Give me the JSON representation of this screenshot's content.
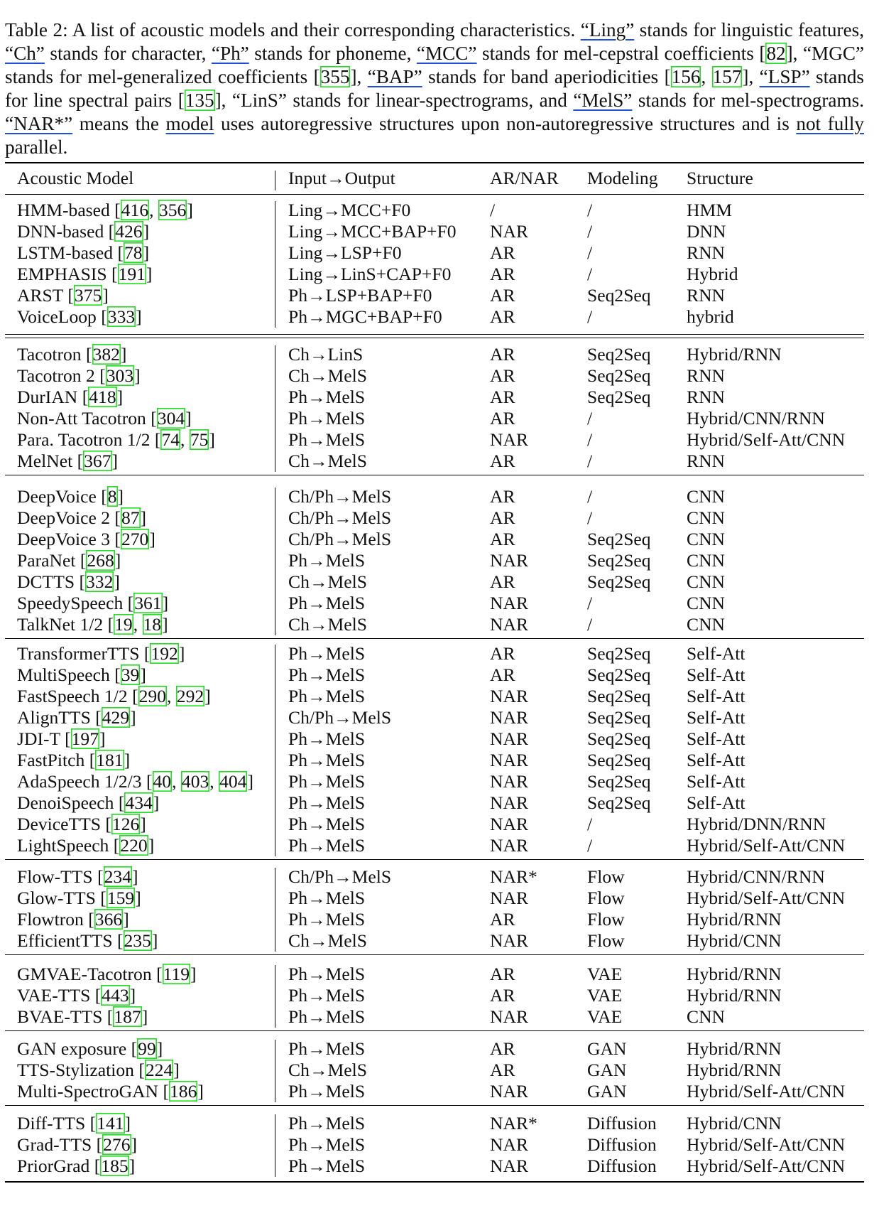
{
  "caption": {
    "label": "Table 2:",
    "text_1": "A list of acoustic models and their corresponding characteristics.",
    "q_ling": "“Ling”",
    "text_2": "stands for linguistic features,",
    "q_ch": "“Ch”",
    "text_3": "stands for character,",
    "q_ph": "“Ph”",
    "text_4": "stands for phoneme,",
    "q_mcc": "“MCC”",
    "text_5": "stands for mel-cepstral coefficients",
    "cite_mcc": "82",
    "q_mgc": "“MGC”",
    "text_6": "stands for mel-generalized coefficients",
    "cite_mgc": "355",
    "q_bap": "“BAP”",
    "text_7": "stands for band aperiodicities",
    "cite_bap_1": "156",
    "cite_bap_2": "157",
    "q_lsp": "“LSP”",
    "text_8": "stands for line spectral pairs",
    "cite_lsp": "135",
    "q_lins": "“LinS”",
    "text_9": "stands for linear-spectrograms,",
    "text_and": "and",
    "q_mels": "“MelS”",
    "text_10": "stands for mel-spectrograms.",
    "q_nar": "“NAR*”",
    "text_11a": "means the",
    "text_model": "model",
    "text_11b": "uses autoregressive structures upon non-autoregressive structures and is",
    "text_notfully": "not fully",
    "text_12": "parallel."
  },
  "table": {
    "headers": [
      "Acoustic Model",
      "Input→Output",
      "AR/NAR",
      "Modeling",
      "Structure"
    ],
    "groups": [
      [
        {
          "name": "HMM-based",
          "cites": [
            "416",
            "356"
          ],
          "io": "Ling→MCC+F0",
          "arnar": "/",
          "modeling": "/",
          "structure": "HMM"
        },
        {
          "name": "DNN-based",
          "cites": [
            "426"
          ],
          "io": "Ling→MCC+BAP+F0",
          "arnar": "NAR",
          "modeling": "/",
          "structure": "DNN"
        },
        {
          "name": "LSTM-based",
          "cites": [
            "78"
          ],
          "io": "Ling→LSP+F0",
          "arnar": "AR",
          "modeling": "/",
          "structure": "RNN"
        },
        {
          "name": "EMPHASIS",
          "cites": [
            "191"
          ],
          "io": "Ling→LinS+CAP+F0",
          "arnar": "AR",
          "modeling": "/",
          "structure": "Hybrid"
        },
        {
          "name": "ARST",
          "cites": [
            "375"
          ],
          "io": "Ph→LSP+BAP+F0",
          "arnar": "AR",
          "modeling": "Seq2Seq",
          "structure": "RNN"
        },
        {
          "name": "VoiceLoop",
          "cites": [
            "333"
          ],
          "io": "Ph→MGC+BAP+F0",
          "arnar": "AR",
          "modeling": "/",
          "structure": "hybrid"
        }
      ],
      [
        {
          "name": "Tacotron",
          "cites": [
            "382"
          ],
          "io": "Ch→LinS",
          "arnar": "AR",
          "modeling": "Seq2Seq",
          "structure": "Hybrid/RNN"
        },
        {
          "name": "Tacotron 2",
          "cites": [
            "303"
          ],
          "io": "Ch→MelS",
          "arnar": "AR",
          "modeling": "Seq2Seq",
          "structure": "RNN"
        },
        {
          "name": "DurIAN",
          "cites": [
            "418"
          ],
          "io": "Ph→MelS",
          "arnar": "AR",
          "modeling": "Seq2Seq",
          "structure": "RNN"
        },
        {
          "name": "Non-Att Tacotron",
          "cites": [
            "304"
          ],
          "io": "Ph→MelS",
          "arnar": "AR",
          "modeling": "/",
          "structure": "Hybrid/CNN/RNN"
        },
        {
          "name": "Para. Tacotron 1/2",
          "cites": [
            "74",
            "75"
          ],
          "io": "Ph→MelS",
          "arnar": "NAR",
          "modeling": "/",
          "structure": "Hybrid/Self-Att/CNN"
        },
        {
          "name": "MelNet",
          "cites": [
            "367"
          ],
          "io": "Ch→MelS",
          "arnar": "AR",
          "modeling": "/",
          "structure": "RNN"
        }
      ],
      [
        {
          "name": "DeepVoice",
          "cites": [
            "8"
          ],
          "io": "Ch/Ph→MelS",
          "arnar": "AR",
          "modeling": "/",
          "structure": "CNN"
        },
        {
          "name": "DeepVoice 2",
          "cites": [
            "87"
          ],
          "io": "Ch/Ph→MelS",
          "arnar": "AR",
          "modeling": "/",
          "structure": "CNN"
        },
        {
          "name": "DeepVoice 3",
          "cites": [
            "270"
          ],
          "io": "Ch/Ph→MelS",
          "arnar": "AR",
          "modeling": "Seq2Seq",
          "structure": "CNN"
        },
        {
          "name": "ParaNet",
          "cites": [
            "268"
          ],
          "io": "Ph→MelS",
          "arnar": "NAR",
          "modeling": "Seq2Seq",
          "structure": "CNN"
        },
        {
          "name": "DCTTS",
          "cites": [
            "332"
          ],
          "io": "Ch→MelS",
          "arnar": "AR",
          "modeling": "Seq2Seq",
          "structure": "CNN"
        },
        {
          "name": "SpeedySpeech",
          "cites": [
            "361"
          ],
          "io": "Ph→MelS",
          "arnar": "NAR",
          "modeling": "/",
          "structure": "CNN"
        },
        {
          "name": "TalkNet 1/2",
          "cites": [
            "19",
            "18"
          ],
          "io": "Ch→MelS",
          "arnar": "NAR",
          "modeling": "/",
          "structure": "CNN"
        }
      ],
      [
        {
          "name": "TransformerTTS",
          "cites": [
            "192"
          ],
          "io": "Ph→MelS",
          "arnar": "AR",
          "modeling": "Seq2Seq",
          "structure": "Self-Att"
        },
        {
          "name": "MultiSpeech",
          "cites": [
            "39"
          ],
          "io": "Ph→MelS",
          "arnar": "AR",
          "modeling": "Seq2Seq",
          "structure": "Self-Att"
        },
        {
          "name": "FastSpeech 1/2",
          "cites": [
            "290",
            "292"
          ],
          "io": "Ph→MelS",
          "arnar": "NAR",
          "modeling": "Seq2Seq",
          "structure": "Self-Att"
        },
        {
          "name": "AlignTTS",
          "cites": [
            "429"
          ],
          "io": "Ch/Ph→MelS",
          "arnar": "NAR",
          "modeling": "Seq2Seq",
          "structure": "Self-Att"
        },
        {
          "name": "JDI-T",
          "cites": [
            "197"
          ],
          "io": "Ph→MelS",
          "arnar": "NAR",
          "modeling": "Seq2Seq",
          "structure": "Self-Att"
        },
        {
          "name": "FastPitch",
          "cites": [
            "181"
          ],
          "io": "Ph→MelS",
          "arnar": "NAR",
          "modeling": "Seq2Seq",
          "structure": "Self-Att"
        },
        {
          "name": "AdaSpeech 1/2/3",
          "cites": [
            "40",
            "403",
            "404"
          ],
          "io": "Ph→MelS",
          "arnar": "NAR",
          "modeling": "Seq2Seq",
          "structure": "Self-Att"
        },
        {
          "name": "DenoiSpeech",
          "cites": [
            "434"
          ],
          "io": "Ph→MelS",
          "arnar": "NAR",
          "modeling": "Seq2Seq",
          "structure": "Self-Att"
        },
        {
          "name": "DeviceTTS",
          "cites": [
            "126"
          ],
          "io": "Ph→MelS",
          "arnar": "NAR",
          "modeling": "/",
          "structure": "Hybrid/DNN/RNN"
        },
        {
          "name": "LightSpeech",
          "cites": [
            "220"
          ],
          "io": "Ph→MelS",
          "arnar": "NAR",
          "modeling": "/",
          "structure": "Hybrid/Self-Att/CNN"
        }
      ],
      [
        {
          "name": "Flow-TTS",
          "cites": [
            "234"
          ],
          "io": "Ch/Ph→MelS",
          "arnar": "NAR*",
          "modeling": "Flow",
          "structure": "Hybrid/CNN/RNN"
        },
        {
          "name": "Glow-TTS",
          "cites": [
            "159"
          ],
          "io": "Ph→MelS",
          "arnar": "NAR",
          "modeling": "Flow",
          "structure": "Hybrid/Self-Att/CNN"
        },
        {
          "name": "Flowtron",
          "cites": [
            "366"
          ],
          "io": "Ph→MelS",
          "arnar": "AR",
          "modeling": "Flow",
          "structure": "Hybrid/RNN"
        },
        {
          "name": "EfficientTTS",
          "cites": [
            "235"
          ],
          "io": "Ch→MelS",
          "arnar": "NAR",
          "modeling": "Flow",
          "structure": "Hybrid/CNN"
        }
      ],
      [
        {
          "name": "GMVAE-Tacotron",
          "cites": [
            "119"
          ],
          "io": "Ph→MelS",
          "arnar": "AR",
          "modeling": "VAE",
          "structure": "Hybrid/RNN"
        },
        {
          "name": "VAE-TTS",
          "cites": [
            "443"
          ],
          "io": "Ph→MelS",
          "arnar": "AR",
          "modeling": "VAE",
          "structure": "Hybrid/RNN"
        },
        {
          "name": "BVAE-TTS",
          "cites": [
            "187"
          ],
          "io": "Ph→MelS",
          "arnar": "NAR",
          "modeling": "VAE",
          "structure": "CNN"
        }
      ],
      [
        {
          "name": "GAN exposure",
          "cites": [
            "99"
          ],
          "io": "Ph→MelS",
          "arnar": "AR",
          "modeling": "GAN",
          "structure": "Hybrid/RNN"
        },
        {
          "name": "TTS-Stylization",
          "cites": [
            "224"
          ],
          "io": "Ch→MelS",
          "arnar": "AR",
          "modeling": "GAN",
          "structure": "Hybrid/RNN"
        },
        {
          "name": "Multi-SpectroGAN",
          "cites": [
            "186"
          ],
          "io": "Ph→MelS",
          "arnar": "NAR",
          "modeling": "GAN",
          "structure": "Hybrid/Self-Att/CNN"
        }
      ],
      [
        {
          "name": "Diff-TTS",
          "cites": [
            "141"
          ],
          "io": "Ph→MelS",
          "arnar": "NAR*",
          "modeling": "Diffusion",
          "structure": "Hybrid/CNN"
        },
        {
          "name": "Grad-TTS",
          "cites": [
            "276"
          ],
          "io": "Ph→MelS",
          "arnar": "NAR",
          "modeling": "Diffusion",
          "structure": "Hybrid/Self-Att/CNN"
        },
        {
          "name": "PriorGrad",
          "cites": [
            "185"
          ],
          "io": "Ph→MelS",
          "arnar": "NAR",
          "modeling": "Diffusion",
          "structure": "Hybrid/Self-Att/CNN"
        }
      ]
    ]
  }
}
